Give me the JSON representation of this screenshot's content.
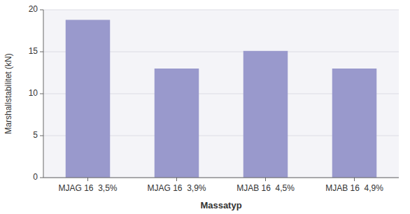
{
  "chart_data": {
    "type": "bar",
    "categories": [
      "MJAG 16  3,5%",
      "MJAG 16  3,9%",
      "MJAB 16  4,5%",
      "MJAB 16  4,9%"
    ],
    "values": [
      18.8,
      13.0,
      15.1,
      13.0
    ],
    "color": "#9999CC",
    "xlabel": "Massatyp",
    "ylabel": "Marshallstabilitet (kN)",
    "ylim": [
      0,
      20
    ],
    "yticks": [
      0,
      5,
      10,
      15,
      20
    ],
    "grid": true
  }
}
